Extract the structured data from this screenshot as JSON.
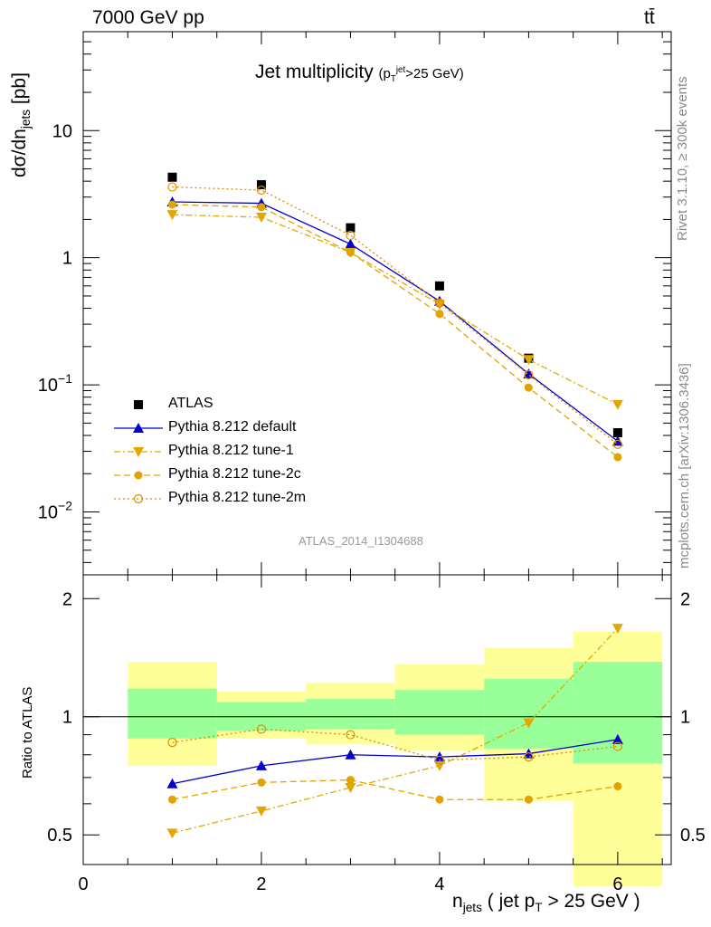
{
  "header": {
    "energy": "7000 GeV pp",
    "process": "tt̄",
    "plot_title": "Jet multiplicity",
    "plot_title_sub": "(p_T^jet>25 GeV)",
    "analysis_id": "ATLAS_2014_I1304688",
    "side_rivet": "Rivet 3.1.10, ≥ 300k events",
    "side_mcplots": "mcplots.cern.ch [arXiv:1306.3436]"
  },
  "axes": {
    "ylabel_main": "dσ/dn_jets [pb]",
    "ylabel_ratio": "Ratio to ATLAS",
    "xlabel": "n_jets ( jet p_T > 25 GeV )"
  },
  "legend": [
    {
      "label": "ATLAS",
      "marker": "square-filled",
      "color": "#000000"
    },
    {
      "label": "Pythia 8.212 default",
      "marker": "triangle-up-filled",
      "color": "#0000cc"
    },
    {
      "label": "Pythia 8.212 tune-1",
      "marker": "triangle-down-filled",
      "color": "#e3a800"
    },
    {
      "label": "Pythia 8.212 tune-2c",
      "marker": "circle-filled",
      "color": "#e3a200"
    },
    {
      "label": "Pythia 8.212 tune-2m",
      "marker": "circle-open",
      "color": "#e08a00"
    }
  ],
  "chart_data": [
    {
      "type": "line",
      "panel": "main",
      "y_scale": "log",
      "xlim": [
        0,
        6.6
      ],
      "ylim": [
        0.0032,
        60
      ],
      "x_ticks": [
        0,
        2,
        4,
        6
      ],
      "y_ticks": [
        "10^-2",
        "10^-1",
        "1",
        "10"
      ],
      "x": [
        1,
        2,
        3,
        4,
        5,
        6
      ],
      "series": [
        {
          "name": "ATLAS",
          "values": [
            4.3,
            3.75,
            1.72,
            0.6,
            0.162,
            0.042
          ],
          "style": "markers"
        },
        {
          "name": "Pythia 8.212 default",
          "values": [
            2.75,
            2.68,
            1.28,
            0.455,
            0.122,
            0.036
          ],
          "style": "solid"
        },
        {
          "name": "Pythia 8.212 tune-1",
          "values": [
            2.18,
            2.08,
            1.1,
            0.43,
            0.158,
            0.07
          ],
          "style": "dash-dot"
        },
        {
          "name": "Pythia 8.212 tune-2c",
          "values": [
            2.62,
            2.5,
            1.1,
            0.362,
            0.095,
            0.027
          ],
          "style": "dashed"
        },
        {
          "name": "Pythia 8.212 tune-2m",
          "values": [
            3.6,
            3.4,
            1.5,
            0.44,
            0.12,
            0.034
          ],
          "style": "dotted"
        }
      ]
    },
    {
      "type": "line",
      "panel": "ratio",
      "xlim": [
        0,
        6.6
      ],
      "ylim": [
        0.42,
        2.3
      ],
      "x_ticks": [
        0,
        2,
        4,
        6
      ],
      "y_ticks": [
        0.5,
        1,
        2
      ],
      "reference_line": 1,
      "x": [
        1,
        2,
        3,
        4,
        5,
        6
      ],
      "uncertainty_bands": {
        "x_edges": [
          0.5,
          1.5,
          2.5,
          3.5,
          4.5,
          5.5,
          6.5
        ],
        "inner": [
          [
            0.88,
            1.18
          ],
          [
            0.92,
            1.09
          ],
          [
            0.93,
            1.11
          ],
          [
            0.9,
            1.17
          ],
          [
            0.83,
            1.25
          ],
          [
            0.76,
            1.38
          ]
        ],
        "outer": [
          [
            0.75,
            1.38
          ],
          [
            0.88,
            1.16
          ],
          [
            0.85,
            1.22
          ],
          [
            0.82,
            1.36
          ],
          [
            0.61,
            1.5
          ],
          [
            0.37,
            1.65
          ]
        ]
      },
      "series": [
        {
          "name": "Pythia 8.212 default",
          "values": [
            0.675,
            0.75,
            0.8,
            0.79,
            0.805,
            0.875
          ]
        },
        {
          "name": "Pythia 8.212 tune-1",
          "values": [
            0.505,
            0.575,
            0.66,
            0.75,
            0.965,
            1.68
          ]
        },
        {
          "name": "Pythia 8.212 tune-2c",
          "values": [
            0.615,
            0.68,
            0.69,
            0.615,
            0.615,
            0.665
          ]
        },
        {
          "name": "Pythia 8.212 tune-2m",
          "values": [
            0.86,
            0.93,
            0.9,
            0.775,
            0.79,
            0.84
          ]
        }
      ]
    }
  ]
}
